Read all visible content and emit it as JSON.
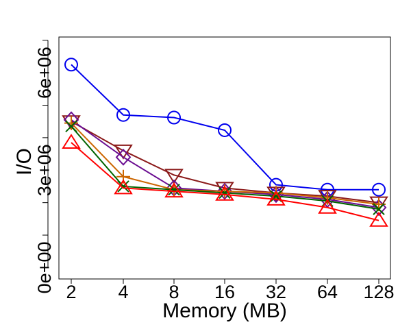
{
  "chart_data": {
    "type": "line",
    "title": "",
    "xlabel": "Memory (MB)",
    "ylabel": "I/O",
    "categories": [
      "2",
      "4",
      "8",
      "16",
      "32",
      "64",
      "128"
    ],
    "yticks": [
      0,
      3000000,
      6000000
    ],
    "ytick_labels": [
      "0e+00",
      "3e+06",
      "6e+06"
    ],
    "ylim": [
      -350000,
      7100000
    ],
    "grid": false,
    "legend": "none",
    "series": [
      {
        "name": "blue-circle",
        "color": "#0000ee",
        "marker": "circle",
        "values": [
          6250000,
          4700000,
          4620000,
          4230000,
          2550000,
          2400000,
          2400000
        ]
      },
      {
        "name": "brown-triangle-down",
        "color": "#8b1a1a",
        "marker": "triangle-down",
        "values": [
          4500000,
          3600000,
          2850000,
          2450000,
          2300000,
          2200000,
          2000000
        ]
      },
      {
        "name": "purple-diamond",
        "color": "#6a0d91",
        "marker": "diamond",
        "values": [
          4550000,
          3400000,
          2450000,
          2350000,
          2250000,
          2100000,
          1850000
        ]
      },
      {
        "name": "orange-plus",
        "color": "#cc6600",
        "marker": "plus",
        "values": [
          4450000,
          2800000,
          2400000,
          2350000,
          2300000,
          2150000,
          1950000
        ]
      },
      {
        "name": "green-x",
        "color": "#006400",
        "marker": "x",
        "values": [
          4350000,
          2500000,
          2400000,
          2300000,
          2200000,
          2050000,
          1800000
        ]
      },
      {
        "name": "red-triangle-up",
        "color": "#ff0000",
        "marker": "triangle-up",
        "values": [
          3850000,
          2450000,
          2350000,
          2250000,
          2100000,
          1850000,
          1450000
        ]
      }
    ]
  }
}
